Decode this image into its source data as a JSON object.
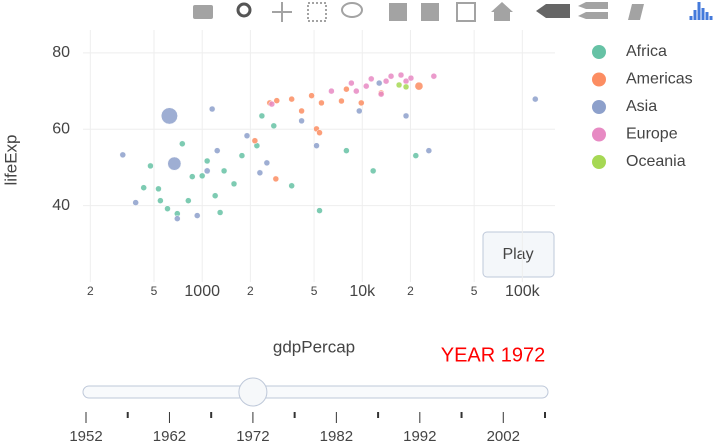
{
  "chart_data": {
    "type": "scatter",
    "x_label": "gdpPercap",
    "y_label": "lifeExp",
    "log_x": true,
    "grid": true,
    "xlim": [
      180,
      160000
    ],
    "ylim": [
      20,
      86
    ],
    "xticks": [
      {
        "value": 200,
        "label": "2"
      },
      {
        "value": 500,
        "label": "5"
      },
      1000,
      {
        "value": 2000,
        "label": "2"
      },
      {
        "value": 5000,
        "label": "5"
      },
      {
        "value": 10000,
        "label": "10k"
      },
      {
        "value": 20000,
        "label": "2"
      },
      {
        "value": 50000,
        "label": "5"
      },
      {
        "value": 100000,
        "label": "100k"
      }
    ],
    "yticks": [
      40,
      60,
      80
    ],
    "annotation": "YEAR 1972",
    "button": "Play",
    "slider": {
      "years": [
        1952,
        1957,
        1962,
        1967,
        1972,
        1977,
        1982,
        1987,
        1992,
        1997,
        2002,
        2007
      ],
      "active": 1972
    },
    "series": [
      {
        "name": "Africa",
        "color": "#66c2a5",
        "x": [
          431,
          533,
          548,
          607,
          699,
          819,
          867,
          1000,
          1074,
          1205,
          1294,
          1370,
          1580,
          1771,
          2196,
          2360,
          2800,
          3622,
          5408,
          7960,
          11700,
          21600,
          751,
          475
        ],
        "y": [
          44.7,
          44.4,
          41.3,
          39.2,
          37.9,
          41.3,
          47.6,
          47.8,
          51.7,
          42.6,
          38.2,
          49.1,
          45.7,
          53.1,
          55.7,
          63.5,
          60.9,
          45.2,
          38.7,
          54.4,
          49.1,
          53.1,
          56.2,
          50.4
        ],
        "sizes": [
          10,
          12,
          8,
          14,
          6,
          10,
          9,
          12,
          8,
          10,
          6,
          11,
          9,
          10,
          12,
          8,
          14,
          10,
          6,
          10,
          8,
          9,
          11,
          8
        ]
      },
      {
        "name": "Americas",
        "color": "#fc8d62",
        "x": [
          2134,
          2644,
          2923,
          2884,
          3622,
          4178,
          4823,
          5178,
          5408,
          5559,
          7413,
          7960,
          9860,
          13120,
          22600
        ],
        "y": [
          57.0,
          66.9,
          67.5,
          47.0,
          67.9,
          64.8,
          68.8,
          60.1,
          59.1,
          66.9,
          67.4,
          70.5,
          66.9,
          69.5,
          71.3
        ],
        "sizes": [
          8,
          6,
          10,
          5,
          12,
          14,
          20,
          98,
          55,
          10,
          23,
          12,
          25,
          22,
          210
        ]
      },
      {
        "name": "Asia",
        "color": "#8da0cb",
        "x": [
          319,
          384,
          624,
          670,
          699,
          931,
          1154,
          1074,
          1241,
          1905,
          2535,
          2293,
          4178,
          5178,
          9580,
          18770,
          26060,
          12760,
          120500
        ],
        "y": [
          53.3,
          40.8,
          63.5,
          51.0,
          36.6,
          37.4,
          65.3,
          49.1,
          54.4,
          58.3,
          51.2,
          48.6,
          62.2,
          55.7,
          64.8,
          63.5,
          54.4,
          72.1,
          67.9
        ],
        "sizes": [
          12,
          14,
          862,
          567,
          13,
          40,
          33,
          121,
          70,
          40,
          30,
          20,
          15,
          11,
          9,
          6,
          7,
          107,
          1
        ]
      },
      {
        "name": "Europe",
        "color": "#e78ac3",
        "x": [
          2723,
          6417,
          8550,
          9180,
          10590,
          11380,
          14090,
          15130,
          17460,
          18770,
          20140,
          28000,
          13120
        ],
        "y": [
          66.6,
          70.0,
          72.1,
          70.0,
          71.3,
          73.2,
          72.6,
          73.9,
          74.2,
          72.6,
          73.4,
          73.9,
          69.2
        ],
        "sizes": [
          2,
          8,
          9,
          20,
          10,
          8,
          52,
          5,
          13,
          56,
          8,
          6,
          30
        ]
      },
      {
        "name": "Oceania",
        "color": "#a6d854",
        "x": [
          16980,
          18770
        ],
        "y": [
          71.6,
          71.1
        ],
        "sizes": [
          13,
          3
        ]
      }
    ]
  }
}
